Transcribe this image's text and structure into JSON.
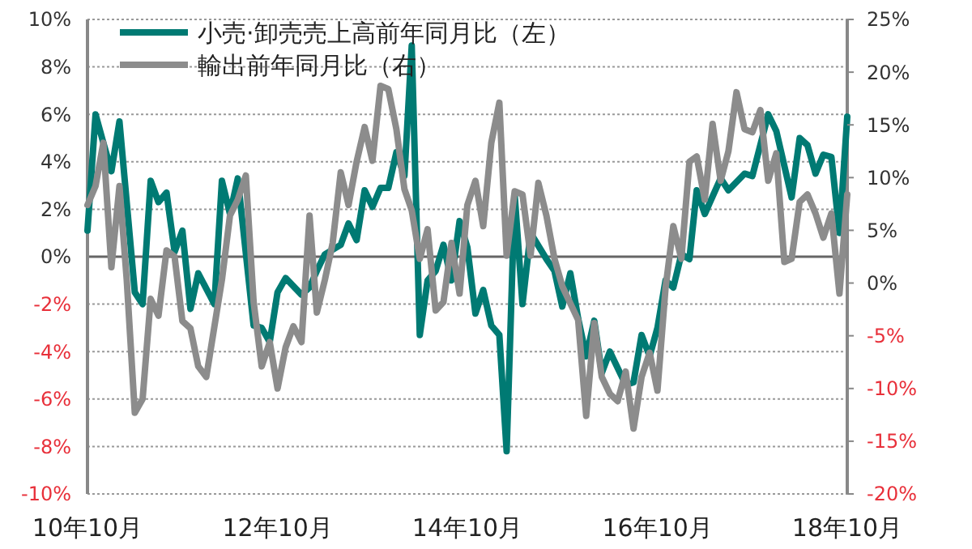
{
  "chart_data": {
    "type": "line",
    "xlim": [
      "2010-10",
      "2018-10"
    ],
    "xticks": [
      {
        "value": "2010-10",
        "label": "10年10月"
      },
      {
        "value": "2012-10",
        "label": "12年10月"
      },
      {
        "value": "2014-10",
        "label": "14年10月"
      },
      {
        "value": "2016-10",
        "label": "16年10月"
      },
      {
        "value": "2018-10",
        "label": "18年10月"
      }
    ],
    "ylim": [
      -10,
      10
    ],
    "yticks": [
      {
        "value": 10,
        "label": "10%"
      },
      {
        "value": 8,
        "label": "8%"
      },
      {
        "value": 6,
        "label": "6%"
      },
      {
        "value": 4,
        "label": "4%"
      },
      {
        "value": 2,
        "label": "2%"
      },
      {
        "value": 0,
        "label": "0%"
      },
      {
        "value": -2,
        "label": "-2%"
      },
      {
        "value": -4,
        "label": "-4%"
      },
      {
        "value": -6,
        "label": "-6%"
      },
      {
        "value": -8,
        "label": "-8%"
      },
      {
        "value": -10,
        "label": "-10%"
      }
    ],
    "y2lim": [
      -20,
      25
    ],
    "y2ticks": [
      {
        "value": 25,
        "label": "25%"
      },
      {
        "value": 20,
        "label": "20%"
      },
      {
        "value": 15,
        "label": "15%"
      },
      {
        "value": 10,
        "label": "10%"
      },
      {
        "value": 5,
        "label": "5%"
      },
      {
        "value": 0,
        "label": "0%"
      },
      {
        "value": -5,
        "label": "-5%"
      },
      {
        "value": -10,
        "label": "-10%"
      },
      {
        "value": -15,
        "label": "-15%"
      },
      {
        "value": -20,
        "label": "-20%"
      }
    ],
    "grid": "y",
    "legend": "top left",
    "marker": "none",
    "line_style": "solid",
    "ref_lines": [
      {
        "axis": "y",
        "value": 0,
        "color": "#666666"
      }
    ],
    "series": [
      {
        "name": "小売·卸売売上高前年同月比（左）",
        "color": "#007a73",
        "axis": "y",
        "x": [
          "2010-10",
          "2010-11",
          "2010-12",
          "2011-01",
          "2011-02",
          "2011-04",
          "2011-05",
          "2011-06",
          "2011-07",
          "2011-08",
          "2011-09",
          "2011-10",
          "2011-11",
          "2011-12",
          "2012-02",
          "2012-03",
          "2012-04",
          "2012-05",
          "2012-07",
          "2012-08",
          "2012-09",
          "2012-10",
          "2012-11",
          "2013-01",
          "2013-02",
          "2013-03",
          "2013-04",
          "2013-06",
          "2013-07",
          "2013-08",
          "2013-09",
          "2013-10",
          "2013-11",
          "2013-12",
          "2014-01",
          "2014-02",
          "2014-03",
          "2014-04",
          "2014-05",
          "2014-06",
          "2014-07",
          "2014-08",
          "2014-09",
          "2014-10",
          "2014-11",
          "2014-12",
          "2015-01",
          "2015-02",
          "2015-03",
          "2015-04",
          "2015-05",
          "2015-06",
          "2015-08",
          "2015-09",
          "2015-10",
          "2015-11",
          "2015-12",
          "2016-01",
          "2016-02",
          "2016-03",
          "2016-04",
          "2016-06",
          "2016-07",
          "2016-08",
          "2016-09",
          "2016-10",
          "2016-11",
          "2016-12",
          "2017-01",
          "2017-02",
          "2017-03",
          "2017-04",
          "2017-06",
          "2017-07",
          "2017-09",
          "2017-10",
          "2017-12",
          "2018-01",
          "2018-03",
          "2018-04",
          "2018-05",
          "2018-06",
          "2018-07",
          "2018-08",
          "2018-09",
          "2018-10"
        ],
        "values": [
          1.1,
          6.0,
          4.8,
          3.6,
          5.7,
          -1.5,
          -2.0,
          3.2,
          2.3,
          2.7,
          0.2,
          1.1,
          -2.2,
          -0.7,
          -2.0,
          3.2,
          1.8,
          3.3,
          -2.9,
          -3.0,
          -3.6,
          -1.5,
          -0.9,
          -1.6,
          -1.3,
          -0.6,
          0.1,
          0.5,
          1.4,
          0.7,
          2.8,
          2.1,
          2.9,
          2.9,
          4.4,
          3.4,
          8.9,
          -3.3,
          -1.0,
          -0.6,
          0.5,
          -1.0,
          1.5,
          0.4,
          -2.4,
          -1.4,
          -2.9,
          -3.3,
          -8.2,
          2.6,
          -2.0,
          1.0,
          -0.1,
          -0.6,
          -2.1,
          -0.7,
          -2.6,
          -4.2,
          -2.7,
          -4.9,
          -4.0,
          -5.4,
          -5.3,
          -3.3,
          -4.2,
          -3.0,
          -1.0,
          -1.3,
          0.1,
          -0.1,
          2.8,
          1.8,
          3.3,
          2.8,
          3.5,
          3.4,
          6.0,
          5.3,
          2.5,
          5.0,
          4.7,
          3.5,
          4.3,
          4.2,
          1.0,
          5.9
        ]
      },
      {
        "name": "輸出前年同月比（右）",
        "color": "#8c8c8c",
        "axis": "y2",
        "x": [
          "2010-10",
          "2010-11",
          "2010-12",
          "2011-01",
          "2011-02",
          "2011-03",
          "2011-04",
          "2011-05",
          "2011-06",
          "2011-07",
          "2011-08",
          "2011-09",
          "2011-10",
          "2011-11",
          "2011-12",
          "2012-01",
          "2012-03",
          "2012-04",
          "2012-05",
          "2012-06",
          "2012-07",
          "2012-08",
          "2012-09",
          "2012-10",
          "2012-11",
          "2012-12",
          "2013-01",
          "2013-02",
          "2013-03",
          "2013-04",
          "2013-05",
          "2013-06",
          "2013-07",
          "2013-08",
          "2013-09",
          "2013-10",
          "2013-11",
          "2013-12",
          "2014-01",
          "2014-02",
          "2014-03",
          "2014-04",
          "2014-05",
          "2014-06",
          "2014-07",
          "2014-08",
          "2014-09",
          "2014-10",
          "2014-11",
          "2014-12",
          "2015-01",
          "2015-02",
          "2015-03",
          "2015-04",
          "2015-05",
          "2015-06",
          "2015-07",
          "2015-08",
          "2015-09",
          "2015-10",
          "2015-12",
          "2016-01",
          "2016-02",
          "2016-03",
          "2016-04",
          "2016-05",
          "2016-06",
          "2016-07",
          "2016-08",
          "2016-09",
          "2016-10",
          "2016-11",
          "2016-12",
          "2017-01",
          "2017-02",
          "2017-03",
          "2017-04",
          "2017-05",
          "2017-06",
          "2017-07",
          "2017-08",
          "2017-09",
          "2017-10",
          "2017-11",
          "2017-12",
          "2018-01",
          "2018-02",
          "2018-03",
          "2018-04",
          "2018-05",
          "2018-06",
          "2018-07",
          "2018-08",
          "2018-09",
          "2018-10"
        ],
        "values": [
          7.4,
          9.2,
          13.3,
          1.5,
          9.2,
          0.3,
          -12.3,
          -11.0,
          -1.5,
          -3.1,
          3.1,
          2.5,
          -3.6,
          -4.3,
          -7.9,
          -8.9,
          0.3,
          6.4,
          7.9,
          10.2,
          -1.8,
          -7.9,
          -5.6,
          -10.0,
          -6.1,
          -4.1,
          -5.6,
          6.4,
          -2.8,
          0.3,
          3.8,
          10.5,
          7.4,
          11.5,
          14.8,
          11.6,
          18.7,
          18.4,
          14.6,
          8.9,
          6.9,
          2.3,
          5.1,
          -2.6,
          -1.8,
          3.8,
          -1.0,
          7.4,
          9.7,
          5.4,
          13.3,
          17.1,
          2.6,
          8.7,
          8.4,
          2.6,
          9.5,
          6.4,
          2.3,
          -0.3,
          -3.5,
          -12.6,
          -3.8,
          -8.9,
          -10.5,
          -11.2,
          -8.4,
          -13.8,
          -8.9,
          -6.6,
          -10.2,
          -0.5,
          5.4,
          2.3,
          11.5,
          12.0,
          7.9,
          15.1,
          9.7,
          12.5,
          18.1,
          14.6,
          14.3,
          16.4,
          9.7,
          12.3,
          2.0,
          2.3,
          7.7,
          8.4,
          6.6,
          4.3,
          6.6,
          -1.0,
          8.4
        ]
      }
    ]
  }
}
